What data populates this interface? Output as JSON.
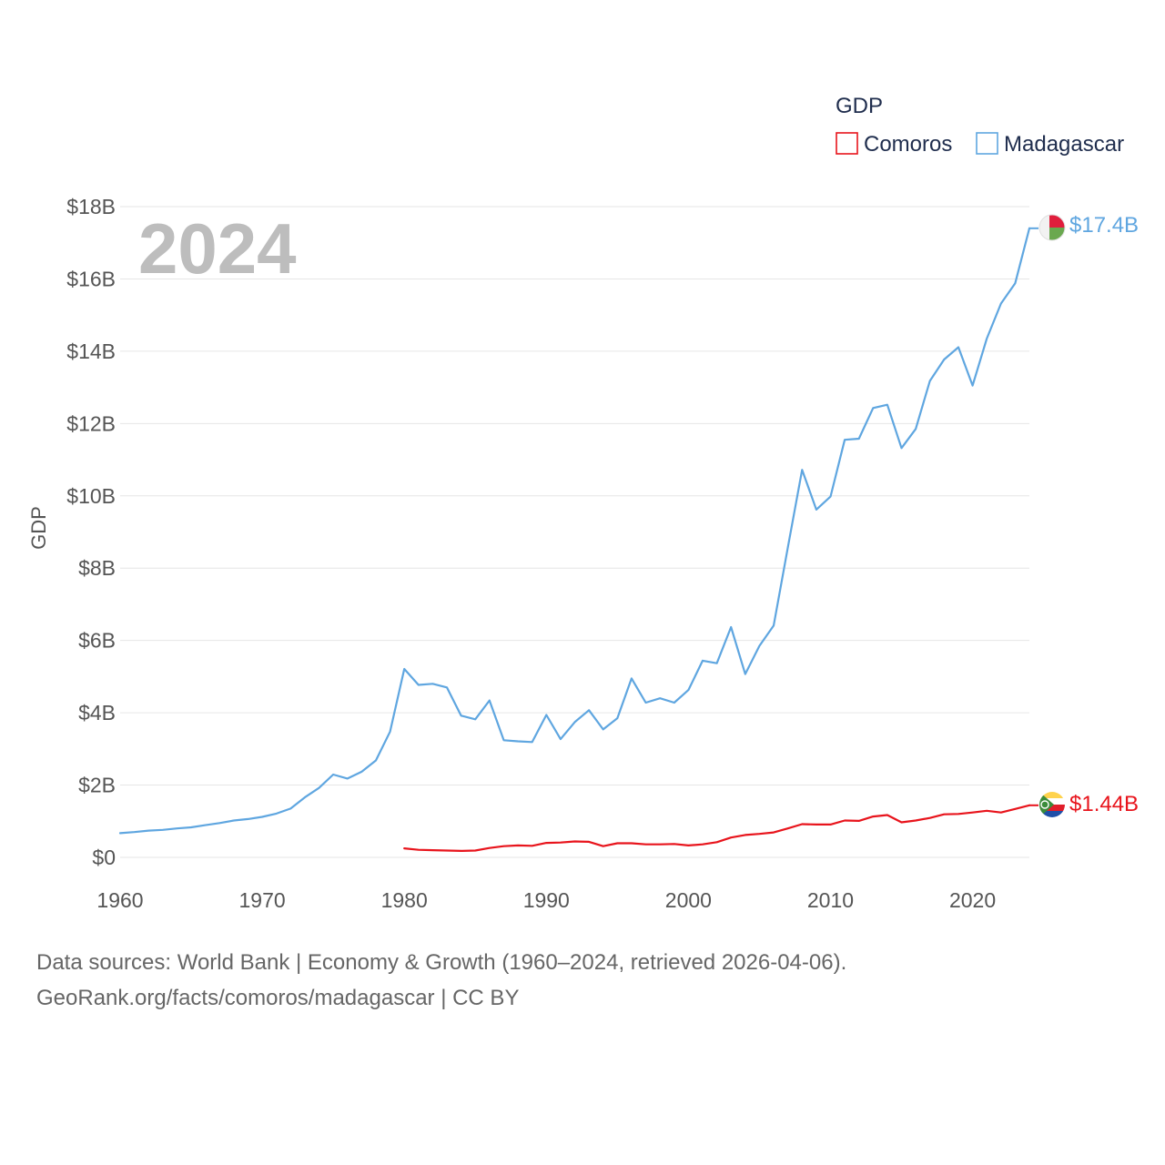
{
  "colors": {
    "comoros": "#e8141c",
    "madagascar": "#5fa6e0",
    "grid": "#e6e6e6",
    "text": "#555555"
  },
  "year_label": "2024",
  "legend": {
    "title": "GDP",
    "items": [
      {
        "name": "Comoros",
        "color": "#e8141c"
      },
      {
        "name": "Madagascar",
        "color": "#5fa6e0"
      }
    ]
  },
  "end_labels": {
    "madagascar": "$17.4B",
    "comoros": "$1.44B"
  },
  "source": {
    "line1": "Data sources: World Bank | Economy & Growth (1960–2024, retrieved 2026-04-06).",
    "line2": "GeoRank.org/facts/comoros/madagascar | CC BY"
  },
  "chart_data": {
    "type": "line",
    "title": "",
    "xlabel": "",
    "ylabel": "GDP",
    "xlim": [
      1960,
      2024
    ],
    "ylim": [
      0,
      18
    ],
    "y_unit": "billion USD",
    "x_ticks": [
      1960,
      1970,
      1980,
      1990,
      2000,
      2010,
      2020
    ],
    "y_ticks": [
      0,
      2,
      4,
      6,
      8,
      10,
      12,
      14,
      16,
      18
    ],
    "y_tick_labels": [
      "$0",
      "$2B",
      "$4B",
      "$6B",
      "$8B",
      "$10B",
      "$12B",
      "$14B",
      "$16B",
      "$18B"
    ],
    "series": [
      {
        "name": "Madagascar",
        "color": "#5fa6e0",
        "x": [
          1960,
          1961,
          1962,
          1963,
          1964,
          1965,
          1966,
          1967,
          1968,
          1969,
          1970,
          1971,
          1972,
          1973,
          1974,
          1975,
          1976,
          1977,
          1978,
          1979,
          1980,
          1981,
          1982,
          1983,
          1984,
          1985,
          1986,
          1987,
          1988,
          1989,
          1990,
          1991,
          1992,
          1993,
          1994,
          1995,
          1996,
          1997,
          1998,
          1999,
          2000,
          2001,
          2002,
          2003,
          2004,
          2005,
          2006,
          2007,
          2008,
          2009,
          2010,
          2011,
          2012,
          2013,
          2014,
          2015,
          2016,
          2017,
          2018,
          2019,
          2020,
          2021,
          2022,
          2023,
          2024
        ],
        "values": [
          0.67,
          0.7,
          0.74,
          0.76,
          0.8,
          0.83,
          0.89,
          0.95,
          1.02,
          1.06,
          1.12,
          1.21,
          1.35,
          1.66,
          1.92,
          2.29,
          2.18,
          2.37,
          2.68,
          3.48,
          5.21,
          4.77,
          4.8,
          4.7,
          3.92,
          3.82,
          4.34,
          3.24,
          3.21,
          3.19,
          3.94,
          3.27,
          3.74,
          4.07,
          3.54,
          3.85,
          4.95,
          4.28,
          4.4,
          4.28,
          4.63,
          5.44,
          5.37,
          6.37,
          5.07,
          5.85,
          6.41,
          8.57,
          10.72,
          9.62,
          9.98,
          11.55,
          11.58,
          12.43,
          12.52,
          11.32,
          11.85,
          13.18,
          13.77,
          14.11,
          13.05,
          14.35,
          15.32,
          15.88,
          17.4
        ]
      },
      {
        "name": "Comoros",
        "color": "#e8141c",
        "x": [
          1980,
          1981,
          1982,
          1983,
          1984,
          1985,
          1986,
          1987,
          1988,
          1989,
          1990,
          1991,
          1992,
          1993,
          1994,
          1995,
          1996,
          1997,
          1998,
          1999,
          2000,
          2001,
          2002,
          2003,
          2004,
          2005,
          2006,
          2007,
          2008,
          2009,
          2010,
          2011,
          2012,
          2013,
          2014,
          2015,
          2016,
          2017,
          2018,
          2019,
          2020,
          2021,
          2022,
          2023,
          2024
        ],
        "values": [
          0.25,
          0.21,
          0.2,
          0.19,
          0.18,
          0.19,
          0.26,
          0.31,
          0.33,
          0.32,
          0.4,
          0.41,
          0.44,
          0.43,
          0.31,
          0.39,
          0.39,
          0.36,
          0.36,
          0.37,
          0.33,
          0.36,
          0.42,
          0.55,
          0.62,
          0.65,
          0.69,
          0.8,
          0.92,
          0.91,
          0.91,
          1.02,
          1.01,
          1.13,
          1.17,
          0.97,
          1.02,
          1.09,
          1.19,
          1.2,
          1.24,
          1.29,
          1.24,
          1.34,
          1.44
        ]
      }
    ]
  }
}
